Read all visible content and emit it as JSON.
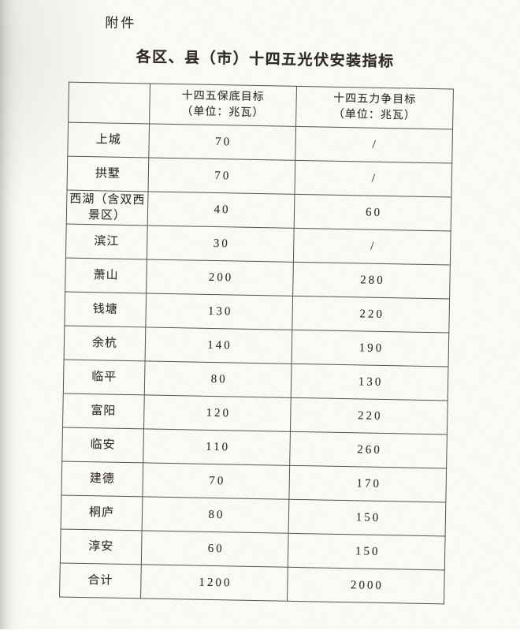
{
  "page": {
    "attachment_label": "附件",
    "title": "各区、县（市）十四五光伏安装指标"
  },
  "table": {
    "header": {
      "region_col": "",
      "base_col_line1": "十四五保底目标",
      "base_col_line2": "（单位：兆瓦）",
      "strive_col_line1": "十四五力争目标",
      "strive_col_line2": "（单位：兆瓦）"
    },
    "rows": [
      {
        "region": "上城",
        "base": "70",
        "strive": "/"
      },
      {
        "region": "拱墅",
        "base": "70",
        "strive": "/"
      },
      {
        "region": "西湖（含双西景区）",
        "base": "40",
        "strive": "60"
      },
      {
        "region": "滨江",
        "base": "30",
        "strive": "/"
      },
      {
        "region": "萧山",
        "base": "200",
        "strive": "280"
      },
      {
        "region": "钱塘",
        "base": "130",
        "strive": "220"
      },
      {
        "region": "余杭",
        "base": "140",
        "strive": "190"
      },
      {
        "region": "临平",
        "base": "80",
        "strive": "130"
      },
      {
        "region": "富阳",
        "base": "120",
        "strive": "220"
      },
      {
        "region": "临安",
        "base": "110",
        "strive": "260"
      },
      {
        "region": "建德",
        "base": "70",
        "strive": "170"
      },
      {
        "region": "桐庐",
        "base": "80",
        "strive": "150"
      },
      {
        "region": "淳安",
        "base": "60",
        "strive": "150"
      },
      {
        "region": "合计",
        "base": "1200",
        "strive": "2000"
      }
    ]
  },
  "colors": {
    "ink": "#33302c",
    "line": "#56534f",
    "paper": "#fbfaf7"
  }
}
